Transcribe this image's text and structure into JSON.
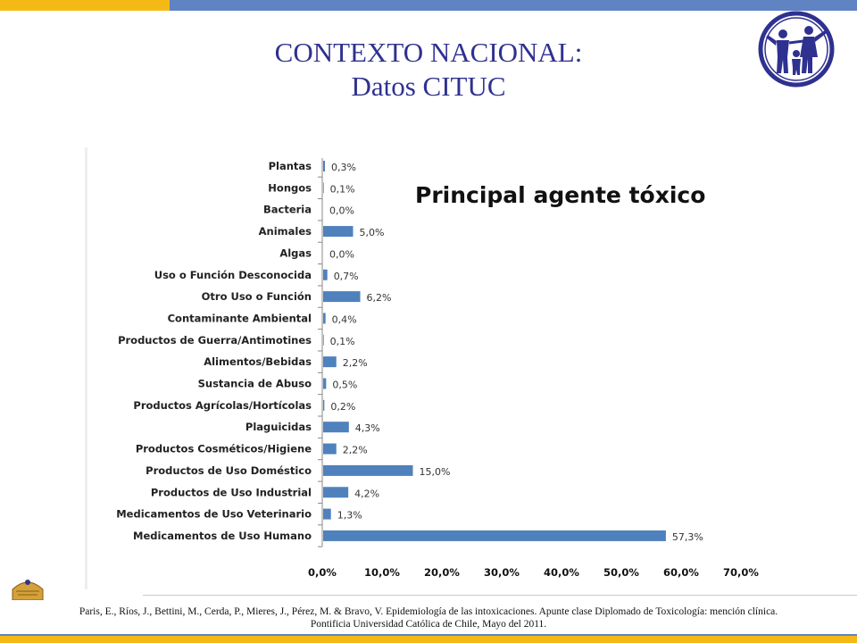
{
  "slide": {
    "title_line1": "CONTEXTO NACIONAL:",
    "title_line2": "Datos CITUC",
    "citation_line1": "Paris, E., Ríos, J., Bettini, M., Cerda, P., Mieres, J., Pérez, M. & Bravo, V. Epidemiología de las intoxicaciones. Apunte clase Diplomado de Toxicología: mención clínica.",
    "citation_line2": "Pontificia Universidad Católica de Chile, Mayo del 2011.",
    "colors": {
      "title": "#2f3190",
      "gold": "#f5b916",
      "blue": "#5f83c3",
      "bar": "#4f81bd"
    }
  },
  "chart_data": {
    "type": "bar",
    "orientation": "horizontal",
    "title": "Principal agente tóxico",
    "categories": [
      "Plantas",
      "Hongos",
      "Bacteria",
      "Animales",
      "Algas",
      "Uso o Función Desconocida",
      "Otro Uso o Función",
      "Contaminante Ambiental",
      "Productos de Guerra/Antimotines",
      "Alimentos/Bebidas",
      "Sustancia de Abuso",
      "Productos Agrícolas/Hortícolas",
      "Plaguicidas",
      "Productos Cosméticos/Higiene",
      "Productos de Uso Doméstico",
      "Productos de Uso Industrial",
      "Medicamentos de Uso Veterinario",
      "Medicamentos de Uso Humano"
    ],
    "values": [
      0.3,
      0.1,
      0.0,
      5.0,
      0.0,
      0.7,
      6.2,
      0.4,
      0.1,
      2.2,
      0.5,
      0.2,
      4.3,
      2.2,
      15.0,
      4.2,
      1.3,
      57.3
    ],
    "value_labels": [
      "0,3%",
      "0,1%",
      "0,0%",
      "5,0%",
      "0,0%",
      "0,7%",
      "6,2%",
      "0,4%",
      "0,1%",
      "2,2%",
      "0,5%",
      "0,2%",
      "4,3%",
      "2,2%",
      "15,0%",
      "4,2%",
      "1,3%",
      "57,3%"
    ],
    "xlim": [
      0,
      70
    ],
    "x_ticks": [
      0,
      10,
      20,
      30,
      40,
      50,
      60,
      70
    ],
    "x_tick_labels": [
      "0,0%",
      "10,0%",
      "20,0%",
      "30,0%",
      "40,0%",
      "50,0%",
      "60,0%",
      "70,0%"
    ],
    "grid": false,
    "legend": "none"
  }
}
